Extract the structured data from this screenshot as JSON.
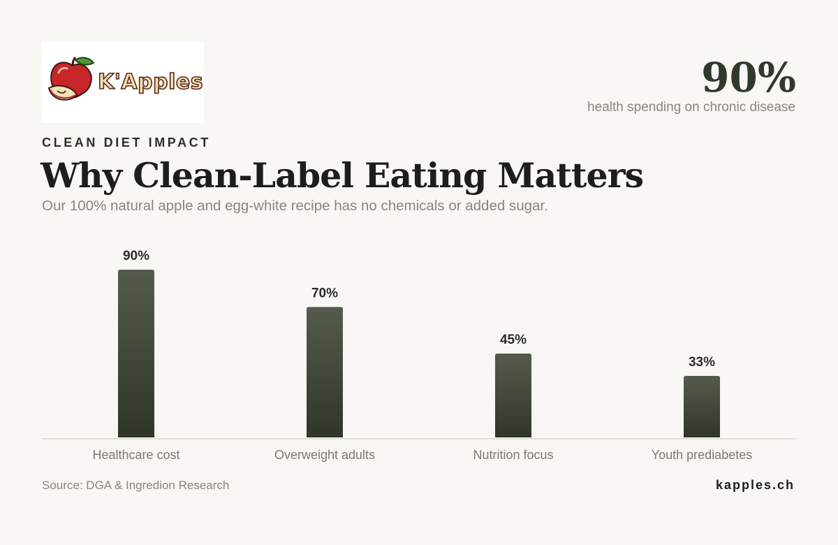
{
  "brand": {
    "logo_text": "K'Apples"
  },
  "hero": {
    "value": "90%",
    "caption": "health spending on chronic disease"
  },
  "header": {
    "eyebrow": "CLEAN DIET IMPACT",
    "title": "Why Clean-Label Eating Matters",
    "subtitle": "Our 100% natural apple and egg-white recipe has no chemicals or added sugar."
  },
  "chart_data": {
    "type": "bar",
    "categories": [
      "Healthcare cost",
      "Overweight adults",
      "Nutrition focus",
      "Youth prediabetes"
    ],
    "values": [
      90,
      70,
      45,
      33
    ],
    "value_labels": [
      "90%",
      "70%",
      "45%",
      "33%"
    ],
    "title": "",
    "xlabel": "",
    "ylabel": "",
    "ylim": [
      0,
      90
    ],
    "grid": false,
    "colors": {
      "bar_top": "#545b4c",
      "bar_bottom": "#30352a",
      "baseline": "#dcd9d2"
    }
  },
  "footer": {
    "source": "Source: DGA & Ingredion Research",
    "site": "kapples.ch"
  }
}
